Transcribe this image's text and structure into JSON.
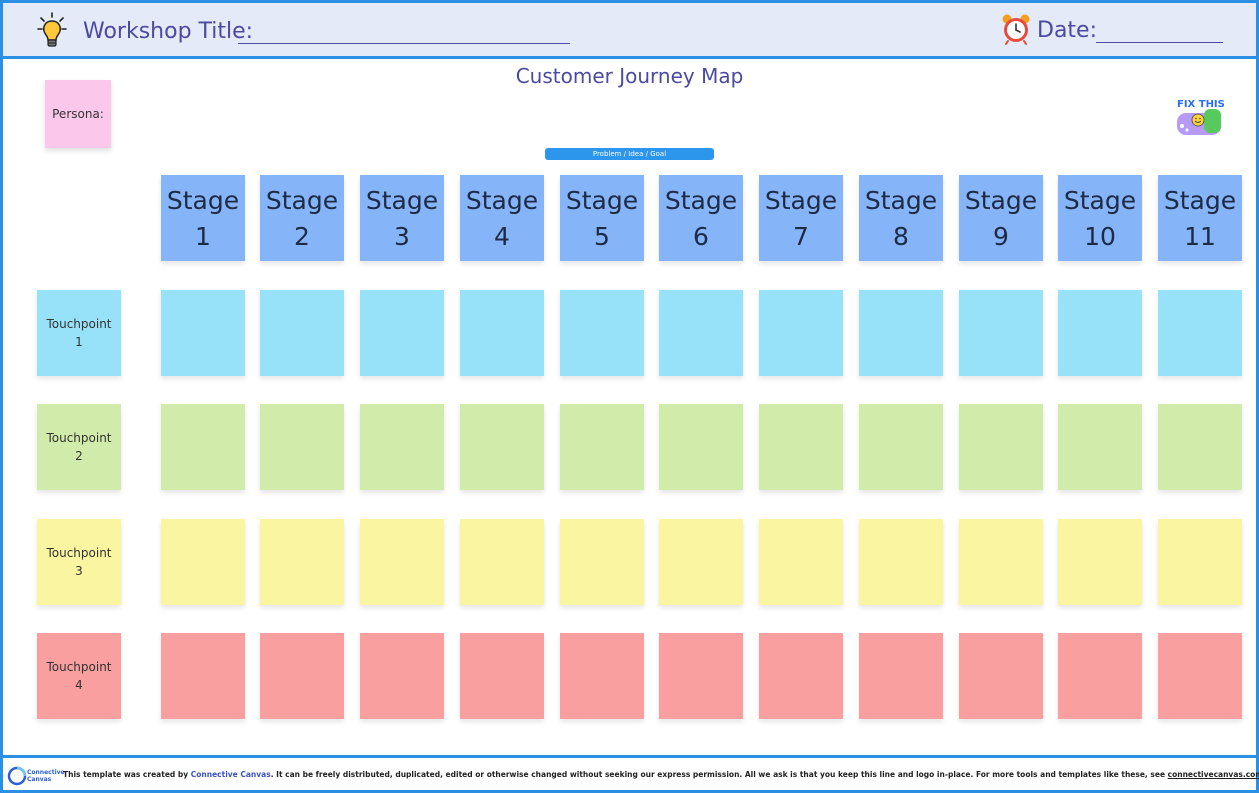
{
  "header": {
    "workshop_title_label": "Workshop Title:",
    "date_label": "Date:",
    "bulb_icon": "lightbulb-icon",
    "clock_icon": "alarm-clock-icon"
  },
  "board": {
    "title": "Customer Journey Map",
    "persona_label": "Persona:",
    "problem_label": "Problem / Idea / Goal",
    "fix_this_logo": "FIX THIS"
  },
  "stages": [
    {
      "word": "Stage",
      "num": "1"
    },
    {
      "word": "Stage",
      "num": "2"
    },
    {
      "word": "Stage",
      "num": "3"
    },
    {
      "word": "Stage",
      "num": "4"
    },
    {
      "word": "Stage",
      "num": "5"
    },
    {
      "word": "Stage",
      "num": "6"
    },
    {
      "word": "Stage",
      "num": "7"
    },
    {
      "word": "Stage",
      "num": "8"
    },
    {
      "word": "Stage",
      "num": "9"
    },
    {
      "word": "Stage",
      "num": "10"
    },
    {
      "word": "Stage",
      "num": "11"
    }
  ],
  "touchpoints": [
    {
      "word": "Touchpoint",
      "num": "1",
      "color": "#98e2f9"
    },
    {
      "word": "Touchpoint",
      "num": "2",
      "color": "#d1ecaa"
    },
    {
      "word": "Touchpoint",
      "num": "3",
      "color": "#faf5a0"
    },
    {
      "word": "Touchpoint",
      "num": "4",
      "color": "#f99f9f"
    }
  ],
  "colors": {
    "stage": "#86b4f9",
    "persona": "#fbc8ec",
    "accent": "#2b8fe3",
    "header_bg": "#e5eaf8"
  },
  "footer": {
    "logo_text": "Connective Canvas",
    "text_before": "This template was created by ",
    "brand": "Connective Canvas",
    "text_middle": ". It can be freely distributed, duplicated, edited or otherwise changed without seeking our express permission. All we ask is that you keep this line and logo in-place. For more tools and templates like these, see ",
    "link": "connectivecanvas.com"
  }
}
